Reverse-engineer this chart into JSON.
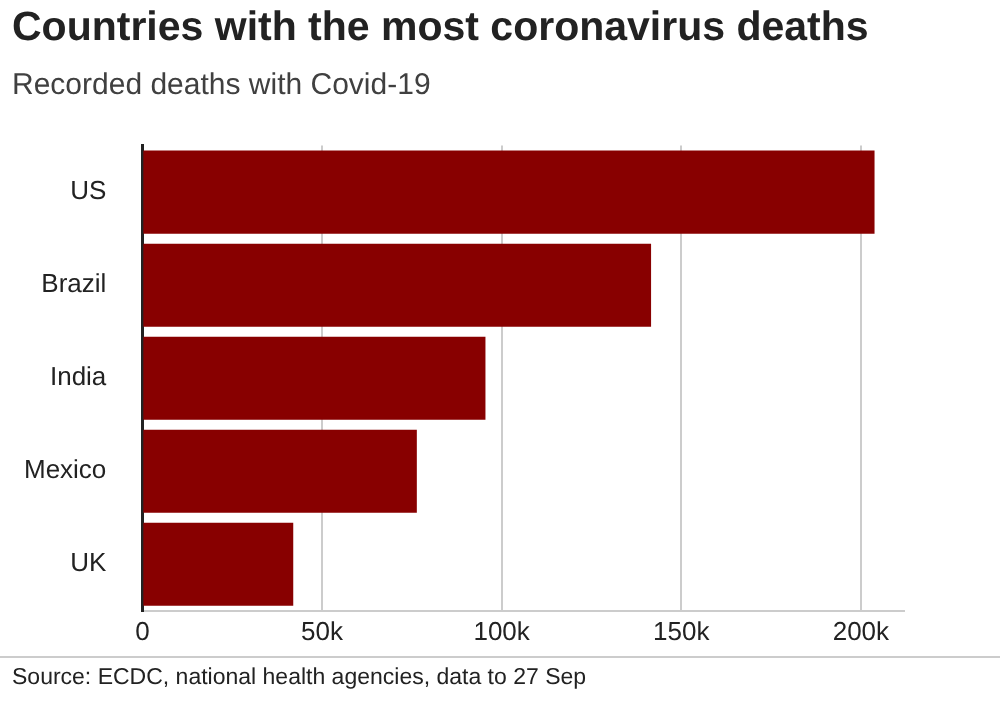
{
  "chart_data": {
    "type": "bar",
    "orientation": "horizontal",
    "title": "Countries with the most coronavirus deaths",
    "subtitle": "Recorded deaths with Covid-19",
    "categories": [
      "US",
      "Brazil",
      "India",
      "Mexico",
      "UK"
    ],
    "values": [
      203800,
      141600,
      95500,
      76400,
      42000
    ],
    "color": "#880000",
    "xlim": [
      0,
      212000
    ],
    "xticks": [
      {
        "value": 0,
        "label": "0"
      },
      {
        "value": 50000,
        "label": "50k"
      },
      {
        "value": 100000,
        "label": "100k"
      },
      {
        "value": 150000,
        "label": "150k"
      },
      {
        "value": 200000,
        "label": "200k"
      }
    ],
    "grid": "x",
    "legend": false,
    "annotations": [
      "Source: ECDC, national health agencies, data to 27 Sep"
    ]
  }
}
